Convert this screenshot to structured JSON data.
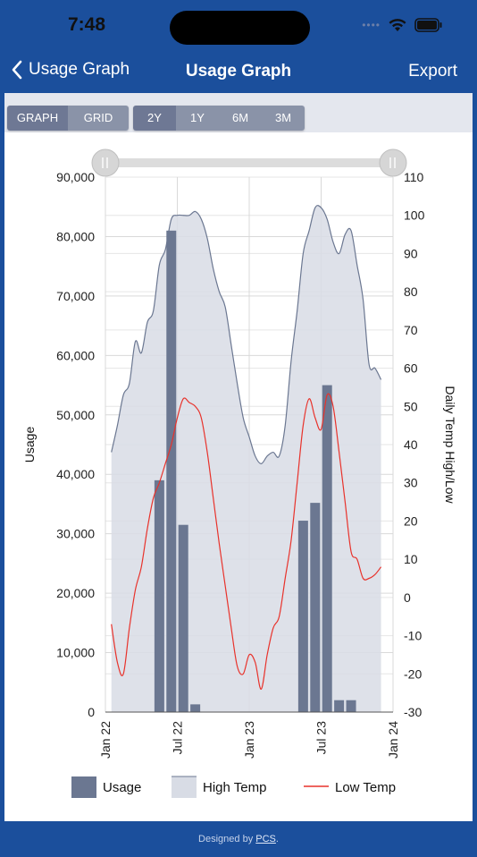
{
  "status_bar": {
    "time": "7:48"
  },
  "nav": {
    "back_label": "Usage Graph",
    "title": "Usage Graph",
    "export_label": "Export"
  },
  "view_toggle": [
    {
      "label": "GRAPH",
      "active": true
    },
    {
      "label": "GRID",
      "active": false
    }
  ],
  "range_toggle": [
    {
      "label": "2Y",
      "active": true
    },
    {
      "label": "1Y",
      "active": false
    },
    {
      "label": "6M",
      "active": false
    },
    {
      "label": "3M",
      "active": false
    }
  ],
  "footer": {
    "prefix": "Designed by ",
    "link": "PCS",
    "suffix": "."
  },
  "colors": {
    "bar": "#6b7791",
    "area_fill": "#d8dce5",
    "area_line": "#6b7791",
    "low_line": "#e8322b",
    "accent": "#1b4f9c"
  },
  "chart_data": {
    "type": "bar+area+line",
    "ylabel": "Usage",
    "y2label": "Daily Temp High/Low",
    "ylim": [
      0,
      90000
    ],
    "y2lim": [
      -30,
      110
    ],
    "y_ticks": [
      {
        "value": 0,
        "label": "0"
      },
      {
        "value": 10000,
        "label": "10,000"
      },
      {
        "value": 20000,
        "label": "20,000"
      },
      {
        "value": 30000,
        "label": "30,000"
      },
      {
        "value": 40000,
        "label": "40,000"
      },
      {
        "value": 50000,
        "label": "50,000"
      },
      {
        "value": 60000,
        "label": "60,000"
      },
      {
        "value": 70000,
        "label": "70,000"
      },
      {
        "value": 80000,
        "label": "80,000"
      },
      {
        "value": 90000,
        "label": "90,000"
      }
    ],
    "y2_ticks": [
      {
        "value": -30,
        "label": "-30"
      },
      {
        "value": -20,
        "label": "-20"
      },
      {
        "value": -10,
        "label": "-10"
      },
      {
        "value": 0,
        "label": "0"
      },
      {
        "value": 10,
        "label": "10"
      },
      {
        "value": 20,
        "label": "20"
      },
      {
        "value": 30,
        "label": "30"
      },
      {
        "value": 40,
        "label": "40"
      },
      {
        "value": 50,
        "label": "50"
      },
      {
        "value": 60,
        "label": "60"
      },
      {
        "value": 70,
        "label": "70"
      },
      {
        "value": 80,
        "label": "80"
      },
      {
        "value": 90,
        "label": "90"
      },
      {
        "value": 100,
        "label": "100"
      },
      {
        "value": 110,
        "label": "110"
      }
    ],
    "x_range": [
      0,
      24
    ],
    "x_ticks": [
      {
        "value": 0,
        "label": "Jan 22"
      },
      {
        "value": 6,
        "label": "Jul 22"
      },
      {
        "value": 12,
        "label": "Jan 23"
      },
      {
        "value": 18,
        "label": "Jul 23"
      },
      {
        "value": 24,
        "label": "Jan 24"
      }
    ],
    "legend": [
      {
        "label": "Usage",
        "kind": "bar"
      },
      {
        "label": "High Temp",
        "kind": "area"
      },
      {
        "label": "Low Temp",
        "kind": "line"
      }
    ],
    "usage": [
      {
        "x": 4.5,
        "y": 39000
      },
      {
        "x": 5.5,
        "y": 81000
      },
      {
        "x": 6.5,
        "y": 31500
      },
      {
        "x": 7.5,
        "y": 1300
      },
      {
        "x": 16.5,
        "y": 32200
      },
      {
        "x": 17.5,
        "y": 35200
      },
      {
        "x": 18.5,
        "y": 55000
      },
      {
        "x": 19.5,
        "y": 2000
      },
      {
        "x": 20.5,
        "y": 2000
      }
    ],
    "high_temp": [
      [
        0.5,
        38
      ],
      [
        1,
        45
      ],
      [
        1.5,
        53
      ],
      [
        2,
        56
      ],
      [
        2.5,
        67
      ],
      [
        3,
        64
      ],
      [
        3.5,
        72
      ],
      [
        4,
        75
      ],
      [
        4.5,
        87
      ],
      [
        5,
        91
      ],
      [
        5.5,
        99
      ],
      [
        6,
        100
      ],
      [
        6.5,
        100
      ],
      [
        7,
        100
      ],
      [
        7.5,
        101
      ],
      [
        8,
        99
      ],
      [
        8.5,
        94
      ],
      [
        9,
        86
      ],
      [
        9.5,
        80
      ],
      [
        10,
        76
      ],
      [
        10.5,
        66
      ],
      [
        11,
        56
      ],
      [
        11.5,
        47
      ],
      [
        12,
        42
      ],
      [
        12.5,
        37
      ],
      [
        13,
        35
      ],
      [
        13.5,
        37
      ],
      [
        14,
        38
      ],
      [
        14.5,
        37
      ],
      [
        15,
        45
      ],
      [
        15.5,
        62
      ],
      [
        16,
        75
      ],
      [
        16.5,
        90
      ],
      [
        17,
        96
      ],
      [
        17.5,
        102
      ],
      [
        18,
        102
      ],
      [
        18.5,
        99
      ],
      [
        19,
        93
      ],
      [
        19.5,
        90
      ],
      [
        20,
        95
      ],
      [
        20.5,
        96
      ],
      [
        21,
        87
      ],
      [
        21.5,
        78
      ],
      [
        22,
        61
      ],
      [
        22.5,
        60
      ],
      [
        23,
        57
      ]
    ],
    "low_temp": [
      [
        0.5,
        -7
      ],
      [
        1,
        -17
      ],
      [
        1.5,
        -20
      ],
      [
        2,
        -8
      ],
      [
        2.5,
        2
      ],
      [
        3,
        8
      ],
      [
        3.5,
        18
      ],
      [
        4,
        26
      ],
      [
        4.5,
        30
      ],
      [
        5,
        35
      ],
      [
        5.5,
        40
      ],
      [
        6,
        47
      ],
      [
        6.5,
        52
      ],
      [
        7,
        51
      ],
      [
        7.5,
        50
      ],
      [
        8,
        47
      ],
      [
        8.5,
        38
      ],
      [
        9,
        26
      ],
      [
        9.5,
        14
      ],
      [
        10,
        3
      ],
      [
        10.5,
        -8
      ],
      [
        11,
        -18
      ],
      [
        11.5,
        -20
      ],
      [
        12,
        -15
      ],
      [
        12.5,
        -17
      ],
      [
        13,
        -24
      ],
      [
        13.5,
        -15
      ],
      [
        14,
        -8
      ],
      [
        14.5,
        -5
      ],
      [
        15,
        5
      ],
      [
        15.5,
        15
      ],
      [
        16,
        30
      ],
      [
        16.5,
        45
      ],
      [
        17,
        52
      ],
      [
        17.5,
        47
      ],
      [
        18,
        44
      ],
      [
        18.5,
        53
      ],
      [
        19,
        50
      ],
      [
        19.5,
        38
      ],
      [
        20,
        25
      ],
      [
        20.5,
        12
      ],
      [
        21,
        10
      ],
      [
        21.5,
        5
      ],
      [
        22,
        5
      ],
      [
        22.5,
        6
      ],
      [
        23,
        8
      ]
    ]
  }
}
